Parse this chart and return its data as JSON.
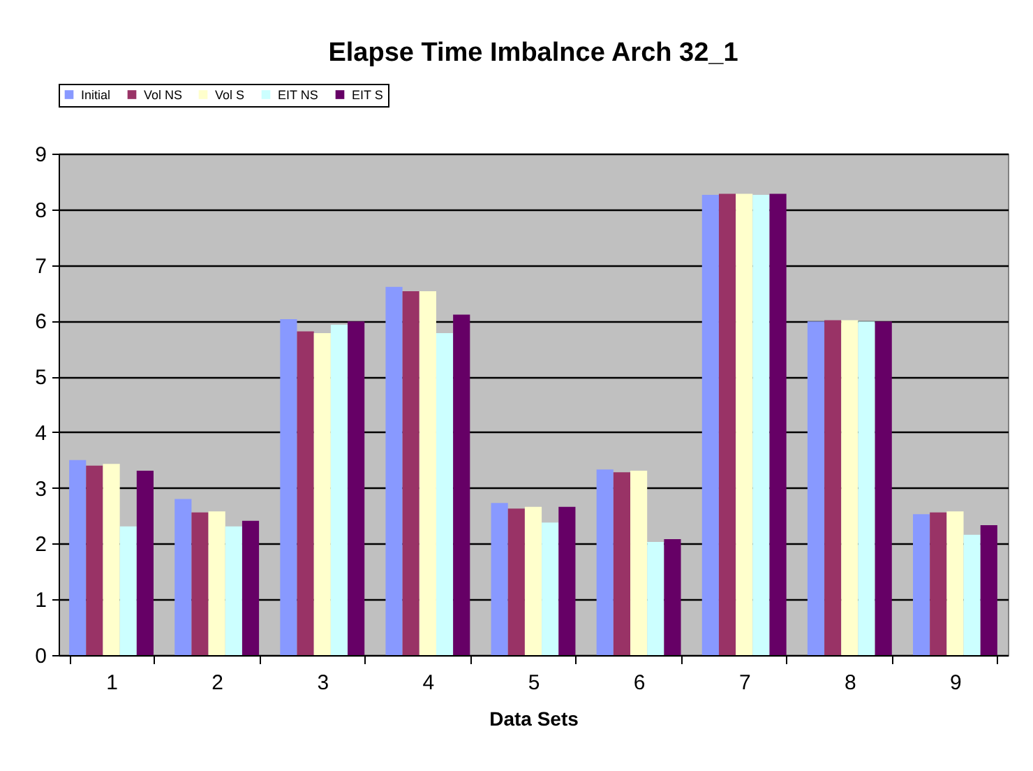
{
  "chart_data": {
    "type": "bar",
    "title": "Elapse Time Imbalnce Arch 32_1",
    "xlabel": "Data Sets",
    "categories": [
      "1",
      "2",
      "3",
      "4",
      "5",
      "6",
      "7",
      "8",
      "9"
    ],
    "series": [
      {
        "name": "Initial",
        "color": "#8899ff",
        "values": [
          3.5,
          2.8,
          6.03,
          6.61,
          2.73,
          3.33,
          8.26,
          5.99,
          2.53
        ]
      },
      {
        "name": "Vol NS",
        "color": "#993366",
        "values": [
          3.4,
          2.56,
          5.81,
          6.53,
          2.63,
          3.28,
          8.28,
          6.01,
          2.56
        ]
      },
      {
        "name": "Vol S",
        "color": "#ffffcc",
        "values": [
          3.43,
          2.58,
          5.78,
          6.53,
          2.66,
          3.31,
          8.28,
          6.01,
          2.58
        ]
      },
      {
        "name": "EIT NS",
        "color": "#ccffff",
        "values": [
          2.31,
          2.31,
          5.93,
          5.78,
          2.38,
          2.03,
          8.26,
          5.99,
          2.16
        ]
      },
      {
        "name": "EIT S",
        "color": "#660066",
        "values": [
          3.31,
          2.41,
          5.99,
          6.11,
          2.66,
          2.08,
          8.28,
          5.99,
          2.33
        ]
      }
    ],
    "ylim": [
      0,
      9
    ],
    "yticks": [
      0,
      1,
      2,
      3,
      4,
      5,
      6,
      7,
      8,
      9
    ],
    "grid": "y",
    "legend": "top"
  }
}
